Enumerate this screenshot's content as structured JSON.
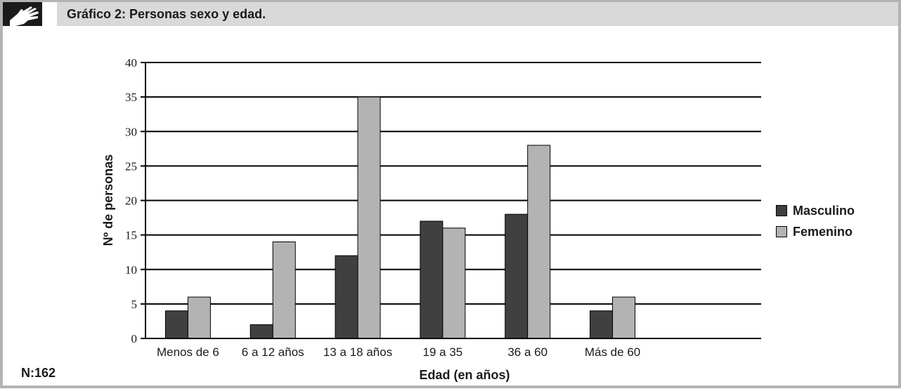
{
  "header": {
    "title": "Gráfico 2: Personas sexo y edad."
  },
  "note": "N:162",
  "colors": {
    "masculino": "#404040",
    "femenino": "#b3b3b3",
    "header_bg": "#d9d9d9",
    "frame": "#b3b3b3"
  },
  "chart_data": {
    "type": "bar",
    "title": "Gráfico 2: Personas sexo y edad.",
    "xlabel": "Edad (en años)",
    "ylabel": "Nº de personas",
    "categories": [
      "Menos de 6",
      "6 a 12 años",
      "13 a 18 años",
      "19 a 35",
      "36 a 60",
      "Más de 60"
    ],
    "series": [
      {
        "name": "Masculino",
        "values": [
          4,
          2,
          12,
          17,
          18,
          4
        ]
      },
      {
        "name": "Femenino",
        "values": [
          6,
          14,
          35,
          16,
          28,
          6
        ]
      }
    ],
    "ylim": [
      0,
      40
    ],
    "yticks": [
      "0",
      "5",
      "10",
      "15",
      "20",
      "25",
      "30",
      "35",
      "40"
    ],
    "grid": true,
    "legend_position": "right"
  }
}
